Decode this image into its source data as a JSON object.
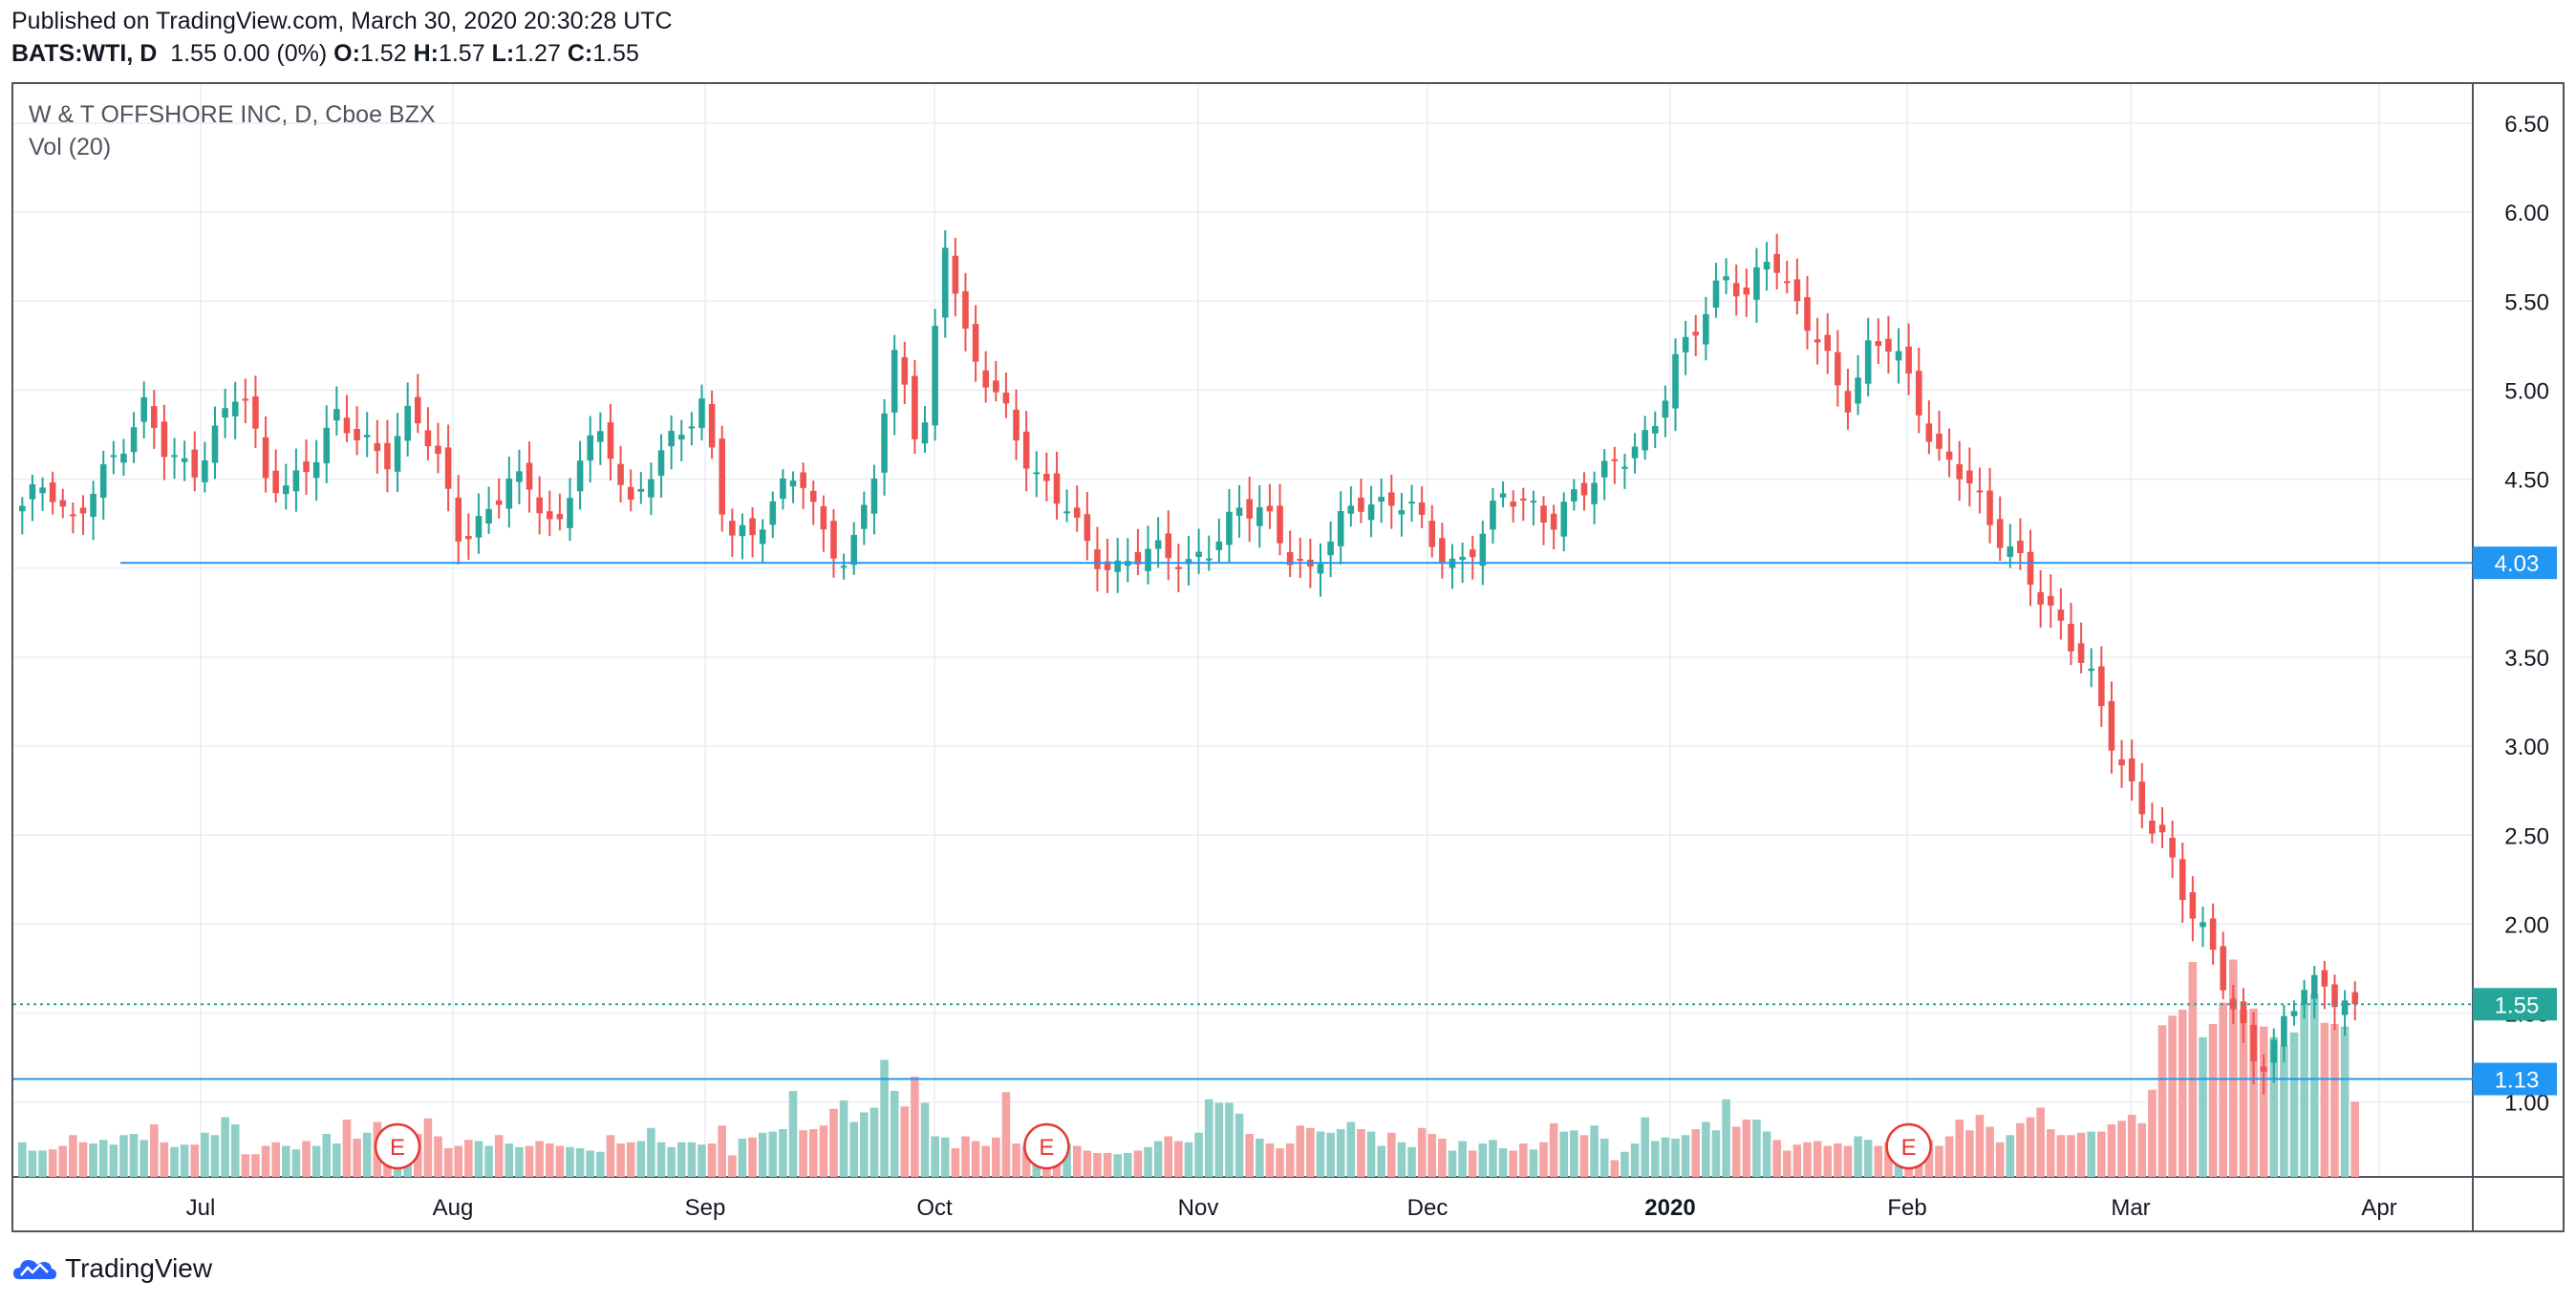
{
  "header": {
    "published": "Published on TradingView.com, March 30, 2020 20:30:28 UTC",
    "symbol": "BATS:WTI, D",
    "change": "1.55 0.00 (0%)",
    "o_label": "O:",
    "o_value": "1.52",
    "h_label": "H:",
    "h_value": "1.57",
    "l_label": "L:",
    "l_value": "1.27",
    "c_label": "C:",
    "c_value": "1.55"
  },
  "overlay": {
    "title": "W & T OFFSHORE INC, D, Cboe BZX",
    "volume_label": "Vol (20)"
  },
  "footer": {
    "brand": "TradingView"
  },
  "colors": {
    "up": "#26a69a",
    "down": "#ef5350",
    "vol_up": "#8fcfc8",
    "vol_down": "#f5a3a3",
    "grid": "#e9eef3",
    "line_blue": "#2196f3",
    "last_price": "#26a69a"
  },
  "chart_data": {
    "type": "candlestick",
    "title": "W & T OFFSHORE INC, D, Cboe BZX",
    "y_axis": {
      "ticks": [
        "1.00",
        "1.50",
        "2.00",
        "2.50",
        "3.00",
        "3.50",
        "4.00",
        "4.50",
        "5.00",
        "5.50",
        "6.00",
        "6.50"
      ],
      "ylim": [
        0.58,
        6.72
      ]
    },
    "x_axis": {
      "ticks": [
        {
          "label": "Jul",
          "bold": false
        },
        {
          "label": "Aug",
          "bold": false
        },
        {
          "label": "Sep",
          "bold": false
        },
        {
          "label": "Oct",
          "bold": false
        },
        {
          "label": "Nov",
          "bold": false
        },
        {
          "label": "Dec",
          "bold": false
        },
        {
          "label": "2020",
          "bold": true
        },
        {
          "label": "Feb",
          "bold": false
        },
        {
          "label": "Mar",
          "bold": false
        },
        {
          "label": "Apr",
          "bold": false
        }
      ]
    },
    "horizontal_lines": [
      {
        "value": 4.03,
        "label": "4.03",
        "color": "#2196f3"
      },
      {
        "value": 1.13,
        "label": "1.13",
        "color": "#2196f3"
      },
      {
        "value": 1.55,
        "label": "1.55",
        "color": "#26a69a",
        "dotted": true
      }
    ],
    "earnings_markers": [
      {
        "label": "E",
        "bar_index": 37
      },
      {
        "label": "E",
        "bar_index": 101
      },
      {
        "label": "E",
        "bar_index": 186
      }
    ],
    "price_anchors": [
      4.35,
      4.45,
      4.2,
      4.5,
      4.7,
      4.9,
      4.6,
      4.5,
      4.8,
      5.1,
      4.5,
      4.4,
      4.6,
      4.9,
      4.75,
      4.6,
      4.85,
      4.65,
      4.2,
      4.3,
      4.5,
      4.4,
      4.15,
      4.7,
      4.8,
      4.3,
      4.55,
      4.75,
      4.95,
      4.25,
      4.15,
      4.35,
      4.55,
      4.2,
      4.05,
      4.5,
      5.2,
      4.6,
      5.9,
      5.2,
      5.0,
      4.65,
      4.45,
      4.4,
      4.1,
      3.95,
      4.05,
      4.1,
      4.05,
      4.15,
      4.3,
      4.3,
      4.1,
      4.0,
      4.25,
      4.35,
      4.3,
      4.4,
      4.2,
      4.0,
      4.15,
      4.4,
      4.35,
      4.3,
      4.45,
      4.5,
      4.6,
      4.75,
      5.2,
      5.4,
      5.6,
      5.5,
      5.8,
      5.5,
      5.3,
      4.85,
      5.2,
      5.3,
      4.95,
      4.6,
      4.5,
      4.2,
      4.1,
      3.9,
      3.65,
      3.4,
      3.0,
      2.7,
      2.55,
      2.15,
      1.85,
      1.5,
      1.2,
      1.45,
      1.7,
      1.55,
      1.55
    ],
    "volumes": [
      0.29,
      0.22,
      0.22,
      0.23,
      0.26,
      0.35,
      0.29,
      0.28,
      0.31,
      0.27,
      0.35,
      0.36,
      0.31,
      0.44,
      0.29,
      0.25,
      0.27,
      0.27,
      0.37,
      0.35,
      0.5,
      0.44,
      0.19,
      0.19,
      0.26,
      0.29,
      0.26,
      0.23,
      0.3,
      0.26,
      0.36,
      0.28,
      0.48,
      0.32,
      0.37,
      0.46,
      0.37,
      0.22,
      0.34,
      0.36,
      0.49,
      0.34,
      0.24,
      0.26,
      0.31,
      0.3,
      0.26,
      0.35,
      0.28,
      0.25,
      0.26,
      0.3,
      0.28,
      0.26,
      0.25,
      0.24,
      0.22,
      0.21,
      0.35,
      0.28,
      0.29,
      0.3,
      0.41,
      0.29,
      0.25,
      0.29,
      0.29,
      0.27,
      0.28,
      0.43,
      0.18,
      0.32,
      0.33,
      0.37,
      0.38,
      0.4,
      0.72,
      0.39,
      0.4,
      0.43,
      0.57,
      0.64,
      0.46,
      0.54,
      0.58,
      0.98,
      0.72,
      0.59,
      0.84,
      0.62,
      0.34,
      0.33,
      0.24,
      0.34,
      0.3,
      0.26,
      0.33,
      0.71,
      0.28,
      0.26,
      0.33,
      0.26,
      0.28,
      0.28,
      0.26,
      0.22,
      0.2,
      0.2,
      0.19,
      0.2,
      0.22,
      0.25,
      0.3,
      0.34,
      0.3,
      0.29,
      0.37,
      0.65,
      0.62,
      0.62,
      0.53,
      0.36,
      0.32,
      0.28,
      0.24,
      0.28,
      0.43,
      0.41,
      0.38,
      0.37,
      0.4,
      0.46,
      0.4,
      0.38,
      0.26,
      0.37,
      0.29,
      0.25,
      0.41,
      0.36,
      0.32,
      0.22,
      0.3,
      0.22,
      0.28,
      0.31,
      0.24,
      0.22,
      0.28,
      0.23,
      0.29,
      0.45,
      0.38,
      0.39,
      0.35,
      0.43,
      0.32,
      0.14,
      0.21,
      0.28,
      0.5,
      0.3,
      0.33,
      0.32,
      0.35,
      0.4,
      0.46,
      0.39,
      0.65,
      0.42,
      0.48,
      0.48,
      0.38,
      0.31,
      0.22,
      0.27,
      0.29,
      0.3,
      0.26,
      0.28,
      0.26,
      0.34,
      0.31,
      0.26,
      0.29,
      0.27,
      0.28,
      0.29,
      0.31,
      0.26,
      0.34,
      0.48,
      0.39,
      0.52,
      0.42,
      0.29,
      0.35,
      0.45,
      0.5,
      0.58,
      0.4,
      0.35,
      0.35,
      0.37,
      0.38,
      0.38,
      0.44,
      0.47,
      0.52,
      0.45,
      0.73,
      1.27,
      1.35,
      1.4,
      1.8,
      1.17,
      1.28,
      1.46,
      1.82,
      1.4,
      1.41,
      1.26,
      1.17,
      1.1,
      1.21,
      1.45,
      1.53,
      1.29,
      1.28,
      1.26,
      0.63
    ]
  }
}
